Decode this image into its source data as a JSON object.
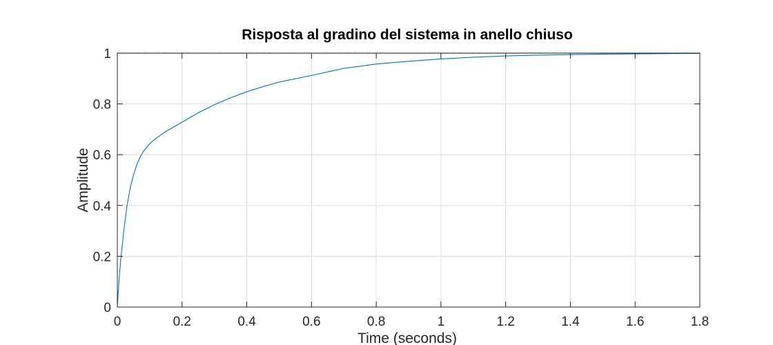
{
  "chart_data": {
    "type": "line",
    "title": "Risposta al gradino del sistema in anello chiuso",
    "xlabel": "Time (seconds)",
    "ylabel": "Amplitude",
    "xlim": [
      0,
      1.8
    ],
    "ylim": [
      0,
      1
    ],
    "xticks": [
      "0",
      "0.2",
      "0.4",
      "0.6",
      "0.8",
      "1",
      "1.2",
      "1.4",
      "1.6",
      "1.8"
    ],
    "yticks": [
      "0",
      "0.2",
      "0.4",
      "0.6",
      "0.8",
      "1"
    ],
    "grid": true,
    "legend": "none",
    "series": [
      {
        "color": "#0072bd",
        "x": [
          0,
          0.005,
          0.01,
          0.02,
          0.03,
          0.04,
          0.05,
          0.06,
          0.07,
          0.08,
          0.09,
          0.1,
          0.12,
          0.15,
          0.2,
          0.25,
          0.3,
          0.35,
          0.4,
          0.45,
          0.5,
          0.6,
          0.7,
          0.8,
          0.9,
          1.0,
          1.1,
          1.2,
          1.3,
          1.4,
          1.5,
          1.6,
          1.7,
          1.8
        ],
        "y": [
          0,
          0.1,
          0.18,
          0.3,
          0.4,
          0.47,
          0.52,
          0.56,
          0.59,
          0.612,
          0.628,
          0.643,
          0.665,
          0.692,
          0.728,
          0.765,
          0.797,
          0.824,
          0.848,
          0.868,
          0.886,
          0.912,
          0.94,
          0.957,
          0.968,
          0.977,
          0.984,
          0.989,
          0.992,
          0.994,
          0.996,
          0.997,
          0.998,
          0.999
        ]
      },
      {
        "style": "dotted",
        "color": "#000000",
        "x": [
          0,
          1.8
        ],
        "y": [
          1,
          1
        ]
      }
    ]
  }
}
